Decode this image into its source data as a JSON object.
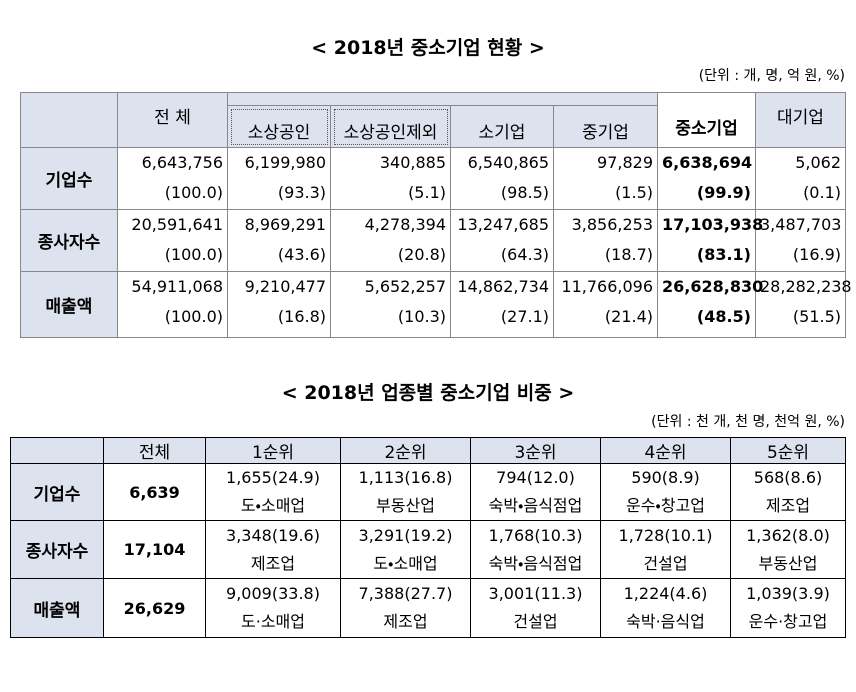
{
  "table1": {
    "title": "< 2018년 중소기업 현황 >",
    "unit": "(단위 : 개, 명, 억 원, %)",
    "header": [
      "전 체",
      "소상공인",
      "소상공인제외",
      "소기업",
      "중기업",
      "중소기업",
      "대기업"
    ],
    "rows": [
      {
        "label": "기업수",
        "values": [
          "6,643,756",
          "6,199,980",
          "340,885",
          "6,540,865",
          "97,829",
          "6,638,694",
          "5,062"
        ],
        "shares": [
          "(100.0)",
          "(93.3)",
          "(5.1)",
          "(98.5)",
          "(1.5)",
          "(99.9)",
          "(0.1)"
        ]
      },
      {
        "label": "종사자수",
        "values": [
          "20,591,641",
          "8,969,291",
          "4,278,394",
          "13,247,685",
          "3,856,253",
          "17,103,938",
          "3,487,703"
        ],
        "shares": [
          "(100.0)",
          "(43.6)",
          "(20.8)",
          "(64.3)",
          "(18.7)",
          "(83.1)",
          "(16.9)"
        ]
      },
      {
        "label": "매출액",
        "values": [
          "54,911,068",
          "9,210,477",
          "5,652,257",
          "14,862,734",
          "11,766,096",
          "26,628,830",
          "28,282,238"
        ],
        "shares": [
          "(100.0)",
          "(16.8)",
          "(10.3)",
          "(27.1)",
          "(21.4)",
          "(48.5)",
          "(51.5)"
        ]
      }
    ]
  },
  "table2": {
    "title": "< 2018년 업종별 중소기업 비중 >",
    "unit": "(단위 : 천 개, 천 명, 천억 원, %)",
    "header": [
      "전체",
      "1순위",
      "2순위",
      "3순위",
      "4순위",
      "5순위"
    ],
    "rows": [
      {
        "label": "기업수",
        "total": "6,639",
        "ranks": [
          {
            "value": "1,655(24.9)",
            "industry": "도・소매업"
          },
          {
            "value": "1,113(16.8)",
            "industry": "부동산업"
          },
          {
            "value": "794(12.0)",
            "industry": "숙박・음식점업"
          },
          {
            "value": "590(8.9)",
            "industry": "운수・창고업"
          },
          {
            "value": "568(8.6)",
            "industry": "제조업"
          }
        ]
      },
      {
        "label": "종사자수",
        "total": "17,104",
        "ranks": [
          {
            "value": "3,348(19.6)",
            "industry": "제조업"
          },
          {
            "value": "3,291(19.2)",
            "industry": "도・소매업"
          },
          {
            "value": "1,768(10.3)",
            "industry": "숙박・음식점업"
          },
          {
            "value": "1,728(10.1)",
            "industry": "건설업"
          },
          {
            "value": "1,362(8.0)",
            "industry": "부동산업"
          }
        ]
      },
      {
        "label": "매출액",
        "total": "26,629",
        "ranks": [
          {
            "value": "9,009(33.8)",
            "industry": "도·소매업"
          },
          {
            "value": "7,388(27.7)",
            "industry": "제조업"
          },
          {
            "value": "3,001(11.3)",
            "industry": "건설업"
          },
          {
            "value": "1,224(4.6)",
            "industry": "숙박·음식업"
          },
          {
            "value": "1,039(3.9)",
            "industry": "운수·창고업"
          }
        ]
      }
    ]
  }
}
